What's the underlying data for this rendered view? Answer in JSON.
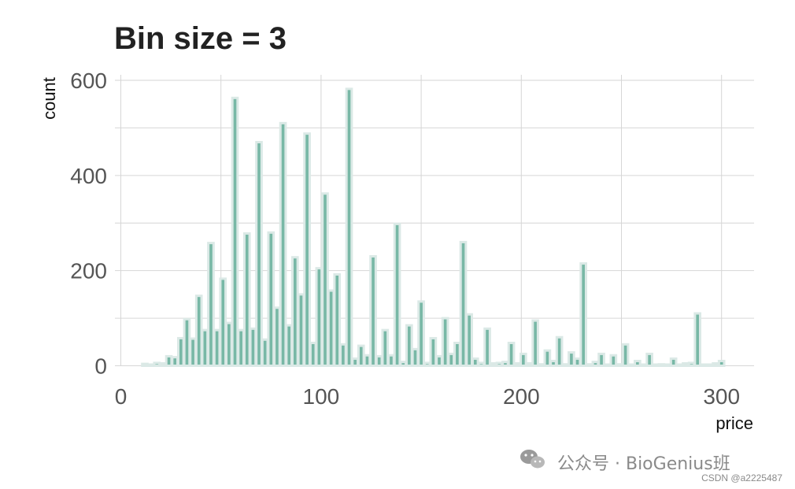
{
  "chart_data": {
    "type": "bar",
    "title": "Bin size = 3",
    "xlabel": "price",
    "ylabel": "count",
    "xlim": [
      0,
      315
    ],
    "ylim": [
      0,
      620
    ],
    "x_ticks": [
      "0",
      "100",
      "200",
      "300"
    ],
    "y_ticks": [
      "0",
      "200",
      "400",
      "600"
    ],
    "grid": true,
    "bin_width": 3,
    "bar_color": "#78b8a6",
    "bins": [
      {
        "x": 12,
        "y": 4
      },
      {
        "x": 15,
        "y": 2
      },
      {
        "x": 18,
        "y": 6
      },
      {
        "x": 21,
        "y": 5
      },
      {
        "x": 24,
        "y": 20
      },
      {
        "x": 27,
        "y": 18
      },
      {
        "x": 30,
        "y": 58
      },
      {
        "x": 33,
        "y": 98
      },
      {
        "x": 36,
        "y": 57
      },
      {
        "x": 39,
        "y": 147
      },
      {
        "x": 42,
        "y": 75
      },
      {
        "x": 45,
        "y": 258
      },
      {
        "x": 48,
        "y": 75
      },
      {
        "x": 51,
        "y": 183
      },
      {
        "x": 54,
        "y": 90
      },
      {
        "x": 57,
        "y": 563
      },
      {
        "x": 60,
        "y": 75
      },
      {
        "x": 63,
        "y": 278
      },
      {
        "x": 66,
        "y": 78
      },
      {
        "x": 69,
        "y": 470
      },
      {
        "x": 72,
        "y": 55
      },
      {
        "x": 75,
        "y": 280
      },
      {
        "x": 78,
        "y": 122
      },
      {
        "x": 81,
        "y": 510
      },
      {
        "x": 84,
        "y": 85
      },
      {
        "x": 87,
        "y": 228
      },
      {
        "x": 90,
        "y": 150
      },
      {
        "x": 93,
        "y": 488
      },
      {
        "x": 96,
        "y": 48
      },
      {
        "x": 99,
        "y": 205
      },
      {
        "x": 102,
        "y": 362
      },
      {
        "x": 105,
        "y": 158
      },
      {
        "x": 108,
        "y": 192
      },
      {
        "x": 111,
        "y": 45
      },
      {
        "x": 114,
        "y": 582
      },
      {
        "x": 117,
        "y": 15
      },
      {
        "x": 120,
        "y": 42
      },
      {
        "x": 123,
        "y": 22
      },
      {
        "x": 126,
        "y": 230
      },
      {
        "x": 129,
        "y": 20
      },
      {
        "x": 132,
        "y": 75
      },
      {
        "x": 135,
        "y": 22
      },
      {
        "x": 138,
        "y": 298
      },
      {
        "x": 141,
        "y": 8
      },
      {
        "x": 144,
        "y": 85
      },
      {
        "x": 147,
        "y": 35
      },
      {
        "x": 150,
        "y": 135
      },
      {
        "x": 153,
        "y": 6
      },
      {
        "x": 156,
        "y": 58
      },
      {
        "x": 159,
        "y": 20
      },
      {
        "x": 162,
        "y": 100
      },
      {
        "x": 165,
        "y": 25
      },
      {
        "x": 168,
        "y": 48
      },
      {
        "x": 171,
        "y": 260
      },
      {
        "x": 174,
        "y": 108
      },
      {
        "x": 177,
        "y": 15
      },
      {
        "x": 180,
        "y": 6
      },
      {
        "x": 183,
        "y": 78
      },
      {
        "x": 186,
        "y": 5
      },
      {
        "x": 189,
        "y": 6
      },
      {
        "x": 192,
        "y": 8
      },
      {
        "x": 195,
        "y": 48
      },
      {
        "x": 198,
        "y": 5
      },
      {
        "x": 201,
        "y": 25
      },
      {
        "x": 204,
        "y": 5
      },
      {
        "x": 207,
        "y": 95
      },
      {
        "x": 210,
        "y": 3
      },
      {
        "x": 213,
        "y": 32
      },
      {
        "x": 216,
        "y": 10
      },
      {
        "x": 219,
        "y": 60
      },
      {
        "x": 222,
        "y": 3
      },
      {
        "x": 225,
        "y": 28
      },
      {
        "x": 228,
        "y": 15
      },
      {
        "x": 231,
        "y": 215
      },
      {
        "x": 234,
        "y": 3
      },
      {
        "x": 237,
        "y": 8
      },
      {
        "x": 240,
        "y": 25
      },
      {
        "x": 243,
        "y": 2
      },
      {
        "x": 246,
        "y": 22
      },
      {
        "x": 249,
        "y": 3
      },
      {
        "x": 252,
        "y": 45
      },
      {
        "x": 255,
        "y": 2
      },
      {
        "x": 258,
        "y": 10
      },
      {
        "x": 261,
        "y": 2
      },
      {
        "x": 264,
        "y": 25
      },
      {
        "x": 267,
        "y": 2
      },
      {
        "x": 270,
        "y": 3
      },
      {
        "x": 273,
        "y": 2
      },
      {
        "x": 276,
        "y": 15
      },
      {
        "x": 279,
        "y": 2
      },
      {
        "x": 282,
        "y": 5
      },
      {
        "x": 285,
        "y": 6
      },
      {
        "x": 288,
        "y": 110
      },
      {
        "x": 291,
        "y": 2
      },
      {
        "x": 294,
        "y": 2
      },
      {
        "x": 297,
        "y": 5
      },
      {
        "x": 300,
        "y": 10
      }
    ]
  },
  "watermark": {
    "channel": "公众号 · BioGenius班",
    "csdn": "CSDN @a2225487"
  },
  "colors": {
    "bar_fill": "#78b8a6",
    "bar_outline": "#dbe9e6",
    "grid": "#d6d6d6"
  }
}
